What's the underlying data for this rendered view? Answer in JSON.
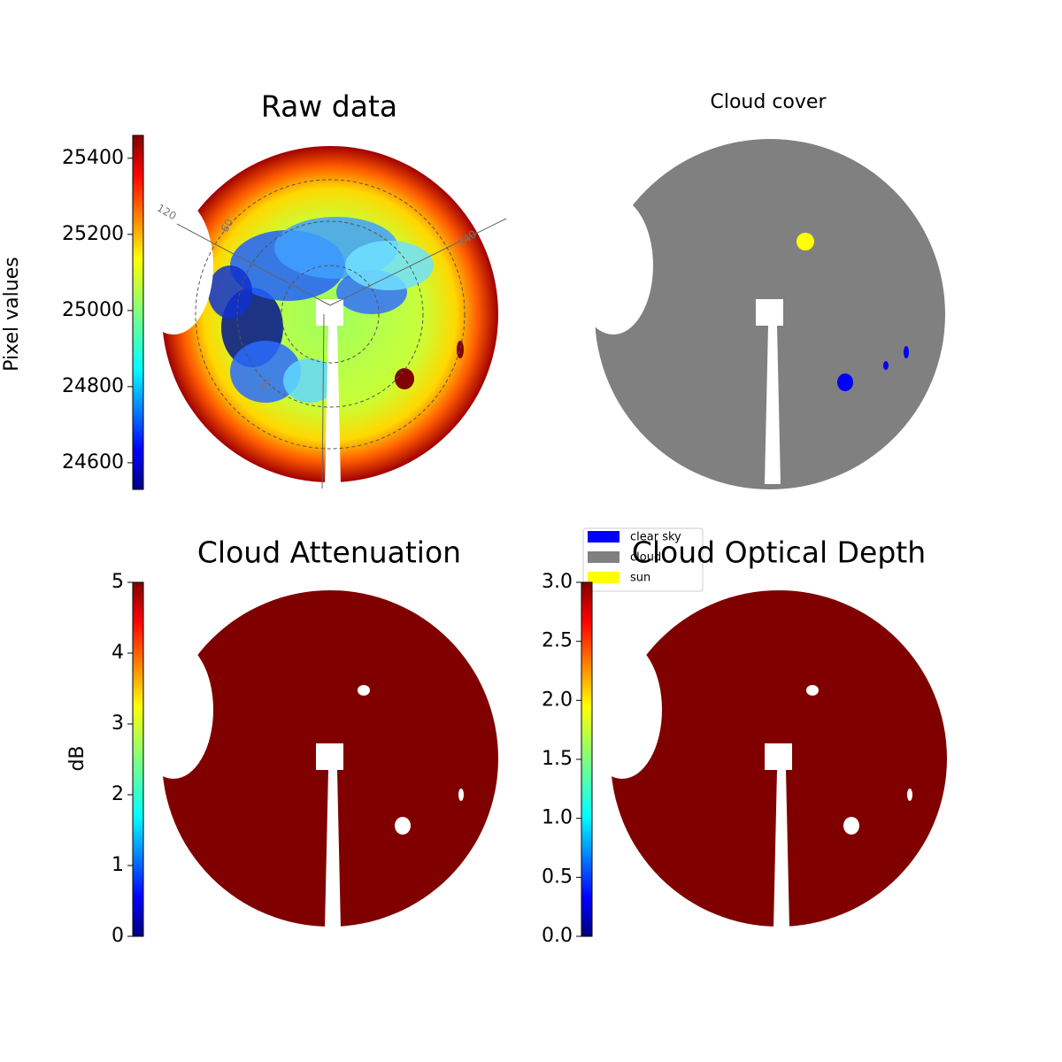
{
  "chart_data": [
    {
      "type": "image",
      "title": "Raw data",
      "colorbar": {
        "label": "Pixel values",
        "lim": [
          24530,
          25460
        ],
        "ticks": [
          24600,
          24800,
          25000,
          25200,
          25400
        ]
      },
      "polar_labels": [
        "120",
        "60",
        "240",
        "40"
      ]
    },
    {
      "type": "image",
      "title": "Cloud cover",
      "legend": [
        {
          "name": "clear sky",
          "color": "#0000ff"
        },
        {
          "name": "cloud",
          "color": "#808080"
        },
        {
          "name": "sun",
          "color": "#ffff00"
        }
      ]
    },
    {
      "type": "image",
      "title": "Cloud Attenuation",
      "colorbar": {
        "label": "dB",
        "lim": [
          0,
          5
        ],
        "ticks": [
          0,
          1,
          2,
          3,
          4,
          5
        ]
      }
    },
    {
      "type": "image",
      "title": "Cloud Optical Depth",
      "colorbar": {
        "lim": [
          0,
          3
        ],
        "ticks": [
          {
            "value": 0,
            "label": "0.0"
          },
          {
            "value": 0.5,
            "label": "0.5"
          },
          {
            "value": 1,
            "label": "1.0"
          },
          {
            "value": 1.5,
            "label": "1.5"
          },
          {
            "value": 2,
            "label": "2.0"
          },
          {
            "value": 2.5,
            "label": "2.5"
          },
          {
            "value": 3,
            "label": "3.0"
          }
        ]
      }
    }
  ]
}
